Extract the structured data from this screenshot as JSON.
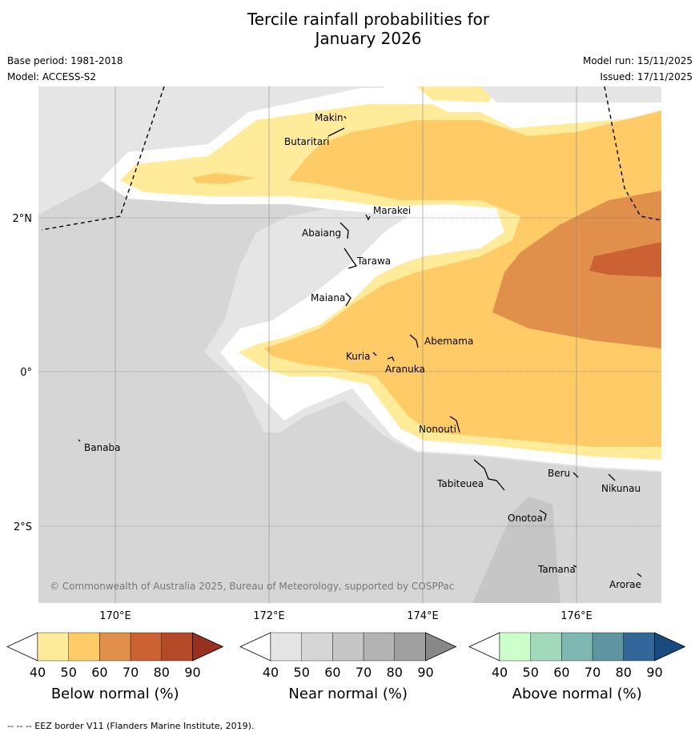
{
  "title_line1": "Tercile rainfall probabilities for",
  "title_line2": "January 2026",
  "meta_left": [
    "Base period: 1981-2018",
    "Model: ACCESS-S2"
  ],
  "meta_right": [
    "Model run: 15/11/2025",
    "Issued: 17/11/2025"
  ],
  "lat_labels": [
    "2°N",
    "0°",
    "2°S"
  ],
  "lon_labels": [
    "170°E",
    "172°E",
    "174°E",
    "176°E"
  ],
  "places": [
    "Makin",
    "Butaritari",
    "Marakei",
    "Abaiang",
    "Tarawa",
    "Maiana",
    "Abemama",
    "Kuria",
    "Aranuka",
    "Nonouti",
    "Banaba",
    "Tabiteuea",
    "Beru",
    "Nikunau",
    "Onotoa",
    "Tamana",
    "Arorae"
  ],
  "copyright": "© Commonwealth of Australia 2025, Bureau of Meteorology, supported by COSPPac",
  "colorbars": [
    {
      "label": "Below normal (%)",
      "ticks": [
        "40",
        "50",
        "60",
        "70",
        "80",
        "90"
      ],
      "colors": [
        "#ffffff",
        "#ffeb99",
        "#fecb66",
        "#e0904a",
        "#cc6233",
        "#b34a28",
        "#983020"
      ]
    },
    {
      "label": "Near normal (%)",
      "ticks": [
        "40",
        "50",
        "60",
        "70",
        "80",
        "90"
      ],
      "colors": [
        "#ffffff",
        "#e5e5e5",
        "#d6d6d6",
        "#c6c6c6",
        "#b3b3b3",
        "#a0a0a0",
        "#888888"
      ]
    },
    {
      "label": "Above normal (%)",
      "ticks": [
        "40",
        "50",
        "60",
        "70",
        "80",
        "90"
      ],
      "colors": [
        "#ffffff",
        "#ccffcc",
        "#a3d9bb",
        "#7fb8b3",
        "#5e95a0",
        "#336699",
        "#184a80"
      ]
    }
  ],
  "footer": "--  --  -- EEZ border V11 (Flanders Marine Institute, 2019)."
}
